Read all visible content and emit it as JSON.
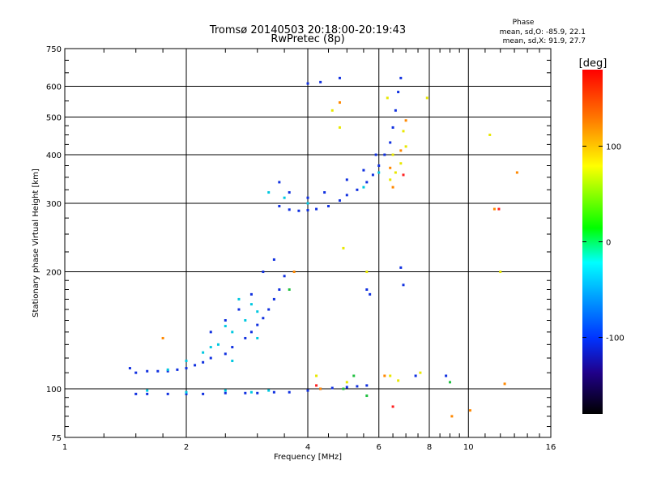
{
  "chart_data": {
    "type": "scatter",
    "title": "Tromsø 20140503 20:18:00-20:19:43",
    "subtitle": "RwPretec (8p)",
    "xlabel": "Frequency [MHz]",
    "ylabel": "Stationary phase Virtual Height [km]",
    "x_scale": "log2",
    "y_scale": "log",
    "xlim": [
      1,
      16
    ],
    "ylim": [
      75,
      750
    ],
    "x_ticks": [
      1,
      2,
      4,
      6,
      8,
      10,
      16
    ],
    "y_ticks": [
      75,
      100,
      200,
      300,
      400,
      500,
      600,
      750
    ],
    "grid": true,
    "phase_stats": {
      "header": "Phase",
      "o_line": "mean, sd,O: -85.9, 22.1",
      "x_line": "mean, sd,X:  91.9, 27.7"
    },
    "colorbar": {
      "label": "[deg]",
      "range": [
        -180,
        180
      ],
      "ticks": [
        100,
        0,
        -100
      ],
      "colors": [
        "#ff0000",
        "#ffaa00",
        "#ffff00",
        "#00ff00",
        "#00ffff",
        "#0044ff",
        "#000088",
        "#000000"
      ]
    },
    "series": [
      {
        "points": [
          [
            1.5,
            97
          ],
          [
            1.6,
            97
          ],
          [
            1.8,
            97
          ],
          [
            2.0,
            97
          ],
          [
            2.2,
            97
          ],
          [
            2.5,
            97.5
          ],
          [
            2.8,
            97.5
          ],
          [
            3.0,
            97.5
          ],
          [
            3.3,
            98
          ],
          [
            3.6,
            98
          ],
          [
            4.0,
            99
          ],
          [
            4.3,
            100
          ],
          [
            4.6,
            100.5
          ],
          [
            5.0,
            101
          ],
          [
            5.3,
            101.5
          ],
          [
            5.6,
            102
          ],
          [
            1.45,
            113
          ],
          [
            1.5,
            110
          ],
          [
            1.6,
            111
          ],
          [
            1.7,
            111
          ],
          [
            1.8,
            111
          ],
          [
            1.9,
            112
          ],
          [
            2.0,
            113
          ],
          [
            2.1,
            115
          ],
          [
            2.2,
            117
          ],
          [
            2.3,
            120
          ],
          [
            2.5,
            123
          ],
          [
            2.6,
            128
          ],
          [
            2.8,
            135
          ],
          [
            2.9,
            140
          ],
          [
            3.0,
            146
          ],
          [
            3.1,
            152
          ],
          [
            3.2,
            160
          ],
          [
            3.3,
            170
          ],
          [
            3.4,
            180
          ],
          [
            3.5,
            195
          ],
          [
            3.3,
            215
          ],
          [
            3.1,
            200
          ],
          [
            2.9,
            175
          ],
          [
            2.7,
            160
          ],
          [
            2.5,
            150
          ],
          [
            2.3,
            140
          ],
          [
            3.4,
            295
          ],
          [
            3.6,
            289
          ],
          [
            3.8,
            287
          ],
          [
            4.0,
            288
          ],
          [
            4.2,
            290
          ],
          [
            4.5,
            295
          ],
          [
            4.8,
            305
          ],
          [
            5.0,
            315
          ],
          [
            5.3,
            325
          ],
          [
            5.6,
            340
          ],
          [
            5.8,
            355
          ],
          [
            6.0,
            375
          ],
          [
            6.2,
            400
          ],
          [
            6.4,
            430
          ],
          [
            6.5,
            470
          ],
          [
            6.6,
            520
          ],
          [
            6.7,
            580
          ],
          [
            6.8,
            630
          ],
          [
            3.4,
            340
          ],
          [
            3.6,
            320
          ],
          [
            4.0,
            310
          ],
          [
            4.4,
            320
          ],
          [
            5.0,
            345
          ],
          [
            5.5,
            365
          ],
          [
            5.9,
            400
          ],
          [
            5.6,
            180
          ],
          [
            5.7,
            175
          ],
          [
            6.9,
            185
          ],
          [
            6.8,
            205
          ],
          [
            4.0,
            610
          ],
          [
            4.3,
            615
          ],
          [
            4.8,
            630
          ],
          [
            7.4,
            108
          ],
          [
            8.8,
            108
          ]
        ],
        "color": "#1030e0"
      },
      {
        "points": [
          [
            1.6,
            99
          ],
          [
            2.0,
            98
          ],
          [
            2.5,
            99
          ],
          [
            2.9,
            98
          ],
          [
            3.2,
            99
          ],
          [
            1.8,
            112
          ],
          [
            2.0,
            118
          ],
          [
            2.2,
            124
          ],
          [
            2.4,
            130
          ],
          [
            2.6,
            140
          ],
          [
            2.8,
            150
          ],
          [
            3.0,
            158
          ],
          [
            2.7,
            170
          ],
          [
            2.5,
            145
          ],
          [
            2.3,
            128
          ],
          [
            3.2,
            320
          ],
          [
            3.5,
            310
          ],
          [
            4.0,
            300
          ],
          [
            5.5,
            330
          ],
          [
            6.0,
            360
          ],
          [
            2.9,
            165
          ],
          [
            3.0,
            135
          ],
          [
            2.6,
            118
          ]
        ],
        "color": "#00c8e0"
      },
      {
        "points": [
          [
            6.4,
            345
          ],
          [
            6.6,
            360
          ],
          [
            6.8,
            380
          ],
          [
            7.0,
            420
          ],
          [
            6.5,
            400
          ],
          [
            6.9,
            460
          ],
          [
            6.3,
            560
          ],
          [
            4.8,
            470
          ],
          [
            5.6,
            200
          ],
          [
            7.6,
            110
          ],
          [
            6.7,
            105
          ],
          [
            4.2,
            108
          ],
          [
            5.0,
            104
          ],
          [
            4.9,
            230
          ],
          [
            7.9,
            560
          ],
          [
            11.3,
            450
          ],
          [
            12.0,
            200
          ],
          [
            4.6,
            520
          ],
          [
            6.4,
            108
          ]
        ],
        "color": "#e8e800"
      },
      {
        "points": [
          [
            6.4,
            370
          ],
          [
            6.8,
            410
          ],
          [
            7.0,
            490
          ],
          [
            4.8,
            545
          ],
          [
            13.2,
            360
          ],
          [
            11.6,
            290
          ],
          [
            4.3,
            100
          ],
          [
            6.2,
            108
          ],
          [
            12.3,
            103
          ],
          [
            9.1,
            85
          ],
          [
            10.1,
            88
          ],
          [
            3.7,
            200
          ],
          [
            6.5,
            330
          ],
          [
            1.75,
            135
          ]
        ],
        "color": "#ff8800"
      },
      {
        "points": [
          [
            6.9,
            355
          ],
          [
            6.5,
            90
          ],
          [
            11.9,
            290
          ],
          [
            4.2,
            102
          ]
        ],
        "color": "#ff2020"
      },
      {
        "points": [
          [
            4.9,
            100
          ],
          [
            5.6,
            96
          ],
          [
            5.2,
            108
          ],
          [
            9.0,
            104
          ],
          [
            3.6,
            180
          ]
        ],
        "color": "#20c040"
      }
    ]
  }
}
